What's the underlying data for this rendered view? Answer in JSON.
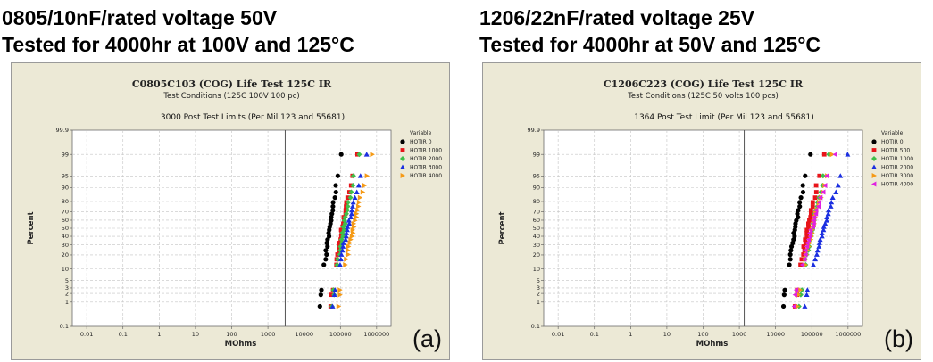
{
  "headings": {
    "left_line1": "0805/10nF/rated voltage 50V",
    "left_line2": "Tested for 4000hr at 100V and 125°C",
    "right_line1": "1206/22nF/rated voltage 25V",
    "right_line2": "Tested for 4000hr at 50V and 125°C"
  },
  "chart_data": [
    {
      "type": "scatter",
      "title": "C0805C103 (COG) Life Test 125C IR",
      "subtitle": "Test Conditions (125C 100V 100 pc)",
      "annotation": "3000 Post Test Limits (Per Mil 123 and 55681)",
      "limit_x": 3000,
      "xlabel": "MOhms",
      "ylabel": "Percent",
      "xscale": "log",
      "yscale": "normal-probability",
      "xlim": [
        0.004,
        2500000
      ],
      "ylim": [
        0.1,
        99.9
      ],
      "grid": true,
      "legend_title": "Variable",
      "legend_position": "right",
      "panel_label": "(a)",
      "x_ticks": [
        "0.01",
        "0.1",
        "1",
        "10",
        "100",
        "1000",
        "10000",
        "100000",
        "1000000"
      ],
      "x_tick_values": [
        0.01,
        0.1,
        1,
        10,
        100,
        1000,
        10000,
        100000,
        1000000
      ],
      "y_ticks": [
        "0.1",
        "1",
        "2",
        "3",
        "5",
        "10",
        "20",
        "30",
        "40",
        "50",
        "60",
        "70",
        "80",
        "90",
        "95",
        "99",
        "99.9"
      ],
      "y_tick_values": [
        0.1,
        1,
        2,
        3,
        5,
        10,
        20,
        30,
        40,
        50,
        60,
        70,
        80,
        90,
        95,
        99,
        99.9
      ],
      "series": [
        {
          "name": "HOTIR 0",
          "marker": "circle",
          "color": "#000000",
          "x_min": 28000,
          "x_max": 110000
        },
        {
          "name": "HOTIR 1000",
          "marker": "square",
          "color": "#e8141a",
          "x_min": 55000,
          "x_max": 280000
        },
        {
          "name": "HOTIR 2000",
          "marker": "diamond",
          "color": "#3fbf4a",
          "x_min": 60000,
          "x_max": 320000
        },
        {
          "name": "HOTIR 3000",
          "marker": "triangle",
          "color": "#1b2fe0",
          "x_min": 62000,
          "x_max": 520000
        },
        {
          "name": "HOTIR 4000",
          "marker": "triangle-right",
          "color": "#f59a16",
          "x_min": 90000,
          "x_max": 750000
        }
      ]
    },
    {
      "type": "scatter",
      "title": "C1206C223 (COG) Life Test 125C IR",
      "subtitle": "Test Conditions (125C 50 volts 100 pcs)",
      "annotation": "1364 Post Test Limit (Per Mil 123 and 55681)",
      "limit_x": 1364,
      "xlabel": "MOhms",
      "ylabel": "Percent",
      "xscale": "log",
      "yscale": "normal-probability",
      "xlim": [
        0.004,
        2500000
      ],
      "ylim": [
        0.1,
        99.9
      ],
      "grid": true,
      "legend_title": "Variable",
      "legend_position": "right",
      "panel_label": "(b)",
      "x_ticks": [
        "0.01",
        "0.1",
        "1",
        "10",
        "100",
        "1000",
        "10000",
        "100000",
        "1000000"
      ],
      "x_tick_values": [
        0.01,
        0.1,
        1,
        10,
        100,
        1000,
        10000,
        100000,
        1000000
      ],
      "y_ticks": [
        "0.1",
        "1",
        "2",
        "3",
        "5",
        "10",
        "20",
        "30",
        "40",
        "50",
        "60",
        "70",
        "80",
        "90",
        "95",
        "99",
        "99.9"
      ],
      "y_tick_values": [
        0.1,
        1,
        2,
        3,
        5,
        10,
        20,
        30,
        40,
        50,
        60,
        70,
        80,
        90,
        95,
        99,
        99.9
      ],
      "series": [
        {
          "name": "HOTIR 0",
          "marker": "circle",
          "color": "#000000",
          "x_min": 17000,
          "x_max": 90000
        },
        {
          "name": "HOTIR 500",
          "marker": "square",
          "color": "#e8141a",
          "x_min": 35000,
          "x_max": 220000
        },
        {
          "name": "HOTIR 1000",
          "marker": "diamond",
          "color": "#3fbf4a",
          "x_min": 45000,
          "x_max": 300000
        },
        {
          "name": "HOTIR 2000",
          "marker": "triangle",
          "color": "#1b2fe0",
          "x_min": 65000,
          "x_max": 1000000
        },
        {
          "name": "HOTIR 3000",
          "marker": "triangle-right",
          "color": "#f59a16",
          "x_min": 40000,
          "x_max": 380000
        },
        {
          "name": "HOTIR 4000",
          "marker": "triangle-left",
          "color": "#e020e0",
          "x_min": 33000,
          "x_max": 420000
        }
      ]
    }
  ]
}
